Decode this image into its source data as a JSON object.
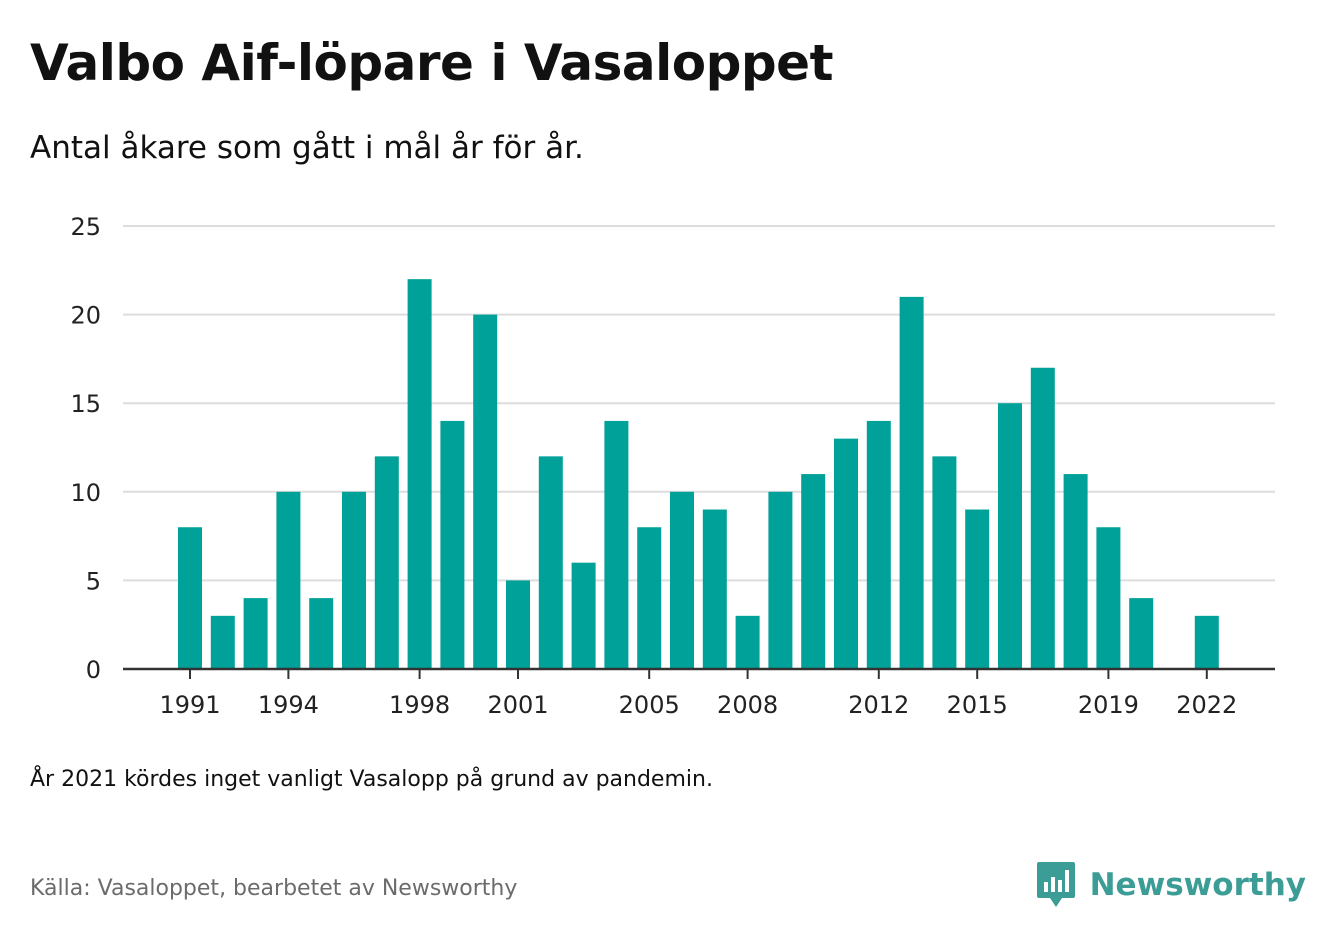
{
  "chart_data": {
    "type": "bar",
    "title": "Valbo Aif-löpare i Vasaloppet",
    "subtitle": "Antal åkare som gått i mål år för år.",
    "categories": [
      1991,
      1992,
      1993,
      1994,
      1995,
      1996,
      1997,
      1998,
      1999,
      2000,
      2001,
      2002,
      2003,
      2004,
      2005,
      2006,
      2007,
      2008,
      2009,
      2010,
      2011,
      2012,
      2013,
      2014,
      2015,
      2016,
      2017,
      2018,
      2019,
      2020,
      2021,
      2022
    ],
    "values": [
      8,
      3,
      4,
      10,
      4,
      10,
      12,
      22,
      14,
      20,
      5,
      12,
      6,
      14,
      8,
      10,
      9,
      3,
      10,
      11,
      13,
      14,
      21,
      12,
      9,
      15,
      17,
      11,
      8,
      4,
      null,
      3
    ],
    "x_tick_labels": [
      "1991",
      "1994",
      "1998",
      "2001",
      "2005",
      "2008",
      "2012",
      "2015",
      "2019",
      "2022"
    ],
    "y_ticks": [
      0,
      5,
      10,
      15,
      20,
      25
    ],
    "ylim": [
      0,
      25
    ],
    "xlabel": "",
    "ylabel": "",
    "grid": true,
    "bar_color": "#00a199",
    "note": "År 2021 kördes inget vanligt Vasalopp på grund av pandemin.",
    "source": "Källa: Vasaloppet, bearbetet av Newsworthy"
  },
  "brand": {
    "name": "Newsworthy",
    "color": "#3b9d95",
    "icon": "newsworthy-logo-icon"
  }
}
